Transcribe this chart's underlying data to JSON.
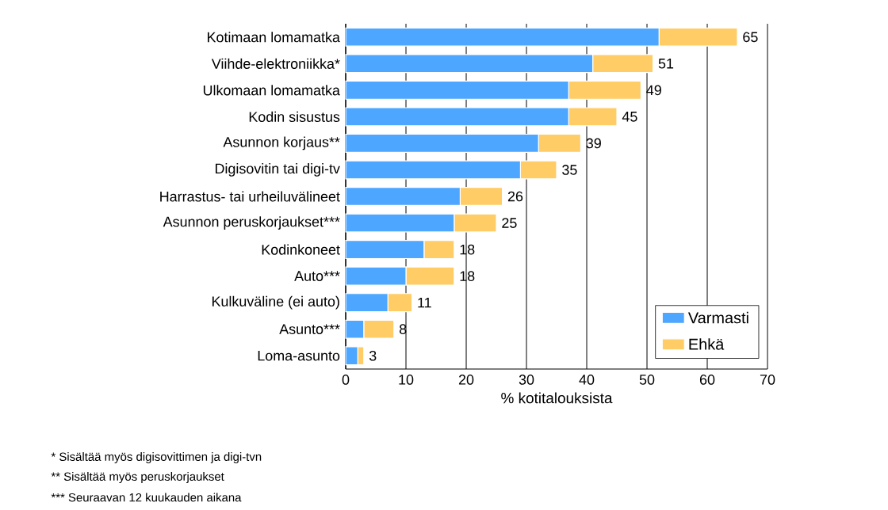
{
  "chart_data": {
    "type": "bar",
    "orientation": "horizontal",
    "stacked": true,
    "categories": [
      "Kotimaan lomamatka",
      "Viihde-elektroniikka*",
      "Ulkomaan lomamatka",
      "Kodin sisustus",
      "Asunnon korjaus**",
      "Digisovitin tai digi-tv",
      "Harrastus- tai urheiluvälineet",
      "Asunnon peruskorjaukset***",
      "Kodinkoneet",
      "Auto***",
      "Kulkuväline (ei auto)",
      "Asunto***",
      "Loma-asunto"
    ],
    "series": [
      {
        "name": "Varmasti",
        "color": "#4da6ff",
        "values": [
          52,
          41,
          37,
          37,
          32,
          29,
          19,
          18,
          13,
          10,
          7,
          3,
          2
        ]
      },
      {
        "name": "Ehkä",
        "color": "#ffcc66",
        "values": [
          13,
          10,
          12,
          8,
          7,
          6,
          7,
          7,
          5,
          8,
          4,
          5,
          1
        ]
      }
    ],
    "totals": [
      "65",
      "51",
      "49",
      "45",
      "39",
      "35",
      "26",
      "25",
      "18",
      "18",
      "11",
      "8",
      "3"
    ],
    "xlabel": "% kotitalouksista",
    "xlim": [
      0,
      70
    ],
    "xticks": [
      0,
      10,
      20,
      30,
      40,
      50,
      60,
      70
    ],
    "grid": "x",
    "legend": "bottom right",
    "annotations": [
      "* Sisältää myös digisovittimen ja digi-tvn",
      "** Sisältää myös peruskorjaukset",
      "*** Seuraavan 12 kuukauden aikana"
    ]
  }
}
